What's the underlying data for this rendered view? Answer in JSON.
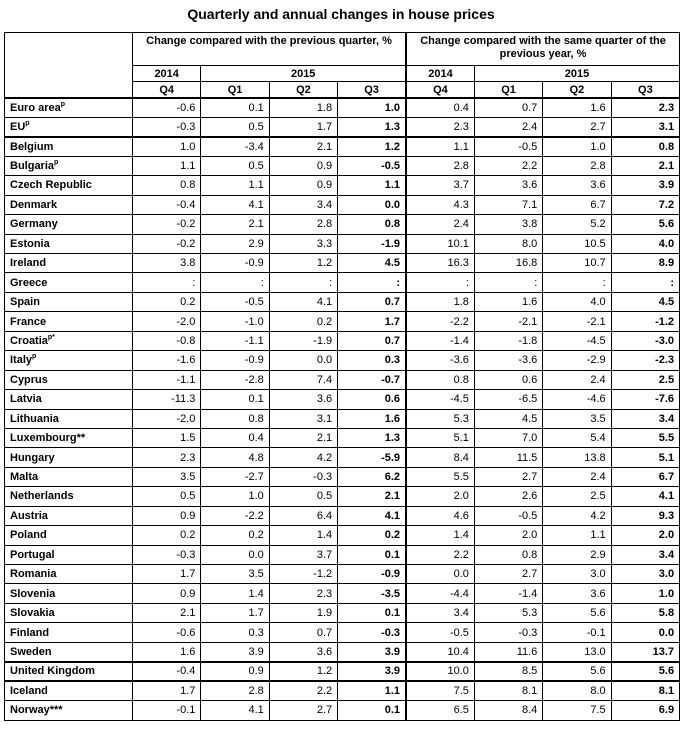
{
  "title": "Quarterly and annual changes in house prices",
  "header": {
    "group1": "Change compared with the previous quarter, %",
    "group2": "Change compared with the same quarter of the previous year, %",
    "year_2014": "2014",
    "year_2015": "2015",
    "quarters": [
      "Q4",
      "Q1",
      "Q2",
      "Q3",
      "Q4",
      "Q1",
      "Q2",
      "Q3"
    ]
  },
  "rows": [
    {
      "name": "Euro area",
      "sup": "p",
      "values": [
        "-0.6",
        "0.1",
        "1.8",
        "1.0",
        "0.4",
        "0.7",
        "1.6",
        "2.3"
      ]
    },
    {
      "name": "EU",
      "sup": "p",
      "values": [
        "-0.3",
        "0.5",
        "1.7",
        "1.3",
        "2.3",
        "2.4",
        "2.7",
        "3.1"
      ]
    },
    {
      "name": "Belgium",
      "sup": "",
      "values": [
        "1.0",
        "-3.4",
        "2.1",
        "1.2",
        "1.1",
        "-0.5",
        "1.0",
        "0.8"
      ]
    },
    {
      "name": "Bulgaria",
      "sup": "p",
      "values": [
        "1.1",
        "0.5",
        "0.9",
        "-0.5",
        "2.8",
        "2.2",
        "2.8",
        "2.1"
      ]
    },
    {
      "name": "Czech Republic",
      "sup": "",
      "values": [
        "0.8",
        "1.1",
        "0.9",
        "1.1",
        "3.7",
        "3.6",
        "3.6",
        "3.9"
      ]
    },
    {
      "name": "Denmark",
      "sup": "",
      "values": [
        "-0.4",
        "4.1",
        "3.4",
        "0.0",
        "4.3",
        "7.1",
        "6.7",
        "7.2"
      ]
    },
    {
      "name": "Germany",
      "sup": "",
      "values": [
        "-0.2",
        "2.1",
        "2.8",
        "0.8",
        "2.4",
        "3.8",
        "5.2",
        "5.6"
      ]
    },
    {
      "name": "Estonia",
      "sup": "",
      "values": [
        "-0.2",
        "2.9",
        "3.3",
        "-1.9",
        "10.1",
        "8.0",
        "10.5",
        "4.0"
      ]
    },
    {
      "name": "Ireland",
      "sup": "",
      "values": [
        "3.8",
        "-0.9",
        "1.2",
        "4.5",
        "16.3",
        "16.8",
        "10.7",
        "8.9"
      ]
    },
    {
      "name": "Greece",
      "sup": "",
      "values": [
        ":",
        ":",
        ":",
        ":",
        ":",
        ":",
        ":",
        ":"
      ]
    },
    {
      "name": "Spain",
      "sup": "",
      "values": [
        "0.2",
        "-0.5",
        "4.1",
        "0.7",
        "1.8",
        "1.6",
        "4.0",
        "4.5"
      ]
    },
    {
      "name": "France",
      "sup": "",
      "values": [
        "-2.0",
        "-1.0",
        "0.2",
        "1.7",
        "-2.2",
        "-2.1",
        "-2.1",
        "-1.2"
      ]
    },
    {
      "name": "Croatia",
      "sup": "p*",
      "values": [
        "-0.8",
        "-1.1",
        "-1.9",
        "0.7",
        "-1.4",
        "-1.8",
        "-4.5",
        "-3.0"
      ]
    },
    {
      "name": "Italy",
      "sup": "p",
      "values": [
        "-1.6",
        "-0.9",
        "0.0",
        "0.3",
        "-3.6",
        "-3.6",
        "-2.9",
        "-2.3"
      ]
    },
    {
      "name": "Cyprus",
      "sup": "",
      "values": [
        "-1.1",
        "-2.8",
        "7.4",
        "-0.7",
        "0.8",
        "0.6",
        "2.4",
        "2.5"
      ]
    },
    {
      "name": "Latvia",
      "sup": "",
      "values": [
        "-11.3",
        "0.1",
        "3.6",
        "0.6",
        "-4.5",
        "-6.5",
        "-4.6",
        "-7.6"
      ]
    },
    {
      "name": "Lithuania",
      "sup": "",
      "values": [
        "-2.0",
        "0.8",
        "3.1",
        "1.6",
        "5.3",
        "4.5",
        "3.5",
        "3.4"
      ]
    },
    {
      "name": "Luxembourg**",
      "sup": "",
      "values": [
        "1.5",
        "0.4",
        "2.1",
        "1.3",
        "5.1",
        "7.0",
        "5.4",
        "5.5"
      ]
    },
    {
      "name": "Hungary",
      "sup": "",
      "values": [
        "2.3",
        "4.8",
        "4.2",
        "-5.9",
        "8.4",
        "11.5",
        "13.8",
        "5.1"
      ]
    },
    {
      "name": "Malta",
      "sup": "",
      "values": [
        "3.5",
        "-2.7",
        "-0.3",
        "6.2",
        "5.5",
        "2.7",
        "2.4",
        "6.7"
      ]
    },
    {
      "name": "Netherlands",
      "sup": "",
      "values": [
        "0.5",
        "1.0",
        "0.5",
        "2.1",
        "2.0",
        "2.6",
        "2.5",
        "4.1"
      ]
    },
    {
      "name": "Austria",
      "sup": "",
      "values": [
        "0.9",
        "-2.2",
        "6.4",
        "4.1",
        "4.6",
        "-0.5",
        "4.2",
        "9.3"
      ]
    },
    {
      "name": "Poland",
      "sup": "",
      "values": [
        "0.2",
        "0.2",
        "1.4",
        "0.2",
        "1.4",
        "2.0",
        "1.1",
        "2.0"
      ]
    },
    {
      "name": "Portugal",
      "sup": "",
      "values": [
        "-0.3",
        "0.0",
        "3.7",
        "0.1",
        "2.2",
        "0.8",
        "2.9",
        "3.4"
      ]
    },
    {
      "name": "Romania",
      "sup": "",
      "values": [
        "1.7",
        "3.5",
        "-1.2",
        "-0.9",
        "0.0",
        "2.7",
        "3.0",
        "3.0"
      ]
    },
    {
      "name": "Slovenia",
      "sup": "",
      "values": [
        "0.9",
        "1.4",
        "2.3",
        "-3.5",
        "-4.4",
        "-1.4",
        "3.6",
        "1.0"
      ]
    },
    {
      "name": "Slovakia",
      "sup": "",
      "values": [
        "2.1",
        "1.7",
        "1.9",
        "0.1",
        "3.4",
        "5.3",
        "5.6",
        "5.8"
      ]
    },
    {
      "name": "Finland",
      "sup": "",
      "values": [
        "-0.6",
        "0.3",
        "0.7",
        "-0.3",
        "-0.5",
        "-0.3",
        "-0.1",
        "0.0"
      ]
    },
    {
      "name": "Sweden",
      "sup": "",
      "values": [
        "1.6",
        "3.9",
        "3.6",
        "3.9",
        "10.4",
        "11.6",
        "13.0",
        "13.7"
      ]
    },
    {
      "name": "United Kingdom",
      "sup": "",
      "values": [
        "-0.4",
        "0.9",
        "1.2",
        "3.9",
        "10.0",
        "8.5",
        "5.6",
        "5.6"
      ]
    },
    {
      "name": "Iceland",
      "sup": "",
      "values": [
        "1.7",
        "2.8",
        "2.2",
        "1.1",
        "7.5",
        "8.1",
        "8.0",
        "8.1"
      ]
    },
    {
      "name": "Norway***",
      "sup": "",
      "values": [
        "-0.1",
        "4.1",
        "2.7",
        "0.1",
        "6.5",
        "8.4",
        "7.5",
        "6.9"
      ]
    }
  ]
}
